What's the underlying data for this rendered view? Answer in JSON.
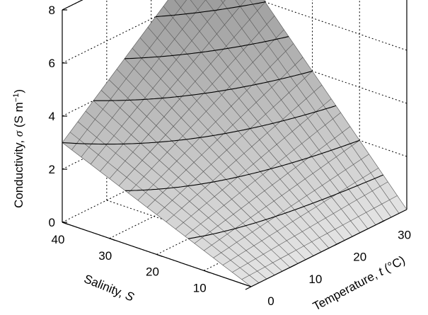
{
  "chart_data": {
    "type": "surface",
    "x_axis": {
      "label": "Salinity, S",
      "ticks": [
        "10",
        "20",
        "30",
        "40"
      ],
      "range": [
        0,
        40
      ]
    },
    "y_axis": {
      "label": "Temperature, t (°C)",
      "ticks": [
        "0",
        "10",
        "20",
        "30"
      ],
      "range": [
        0,
        35
      ]
    },
    "z_axis": {
      "label": "Conductivity, σ (S m⁻¹)",
      "ticks": [
        "0",
        "2",
        "4",
        "6",
        "8"
      ],
      "range": [
        0,
        8
      ]
    },
    "grid": true,
    "surface_corners": [
      {
        "salinity": 0,
        "temperature": 0,
        "conductivity": 0
      },
      {
        "salinity": 40,
        "temperature": 0,
        "conductivity": 3.0
      },
      {
        "salinity": 0,
        "temperature": 35,
        "conductivity": 0
      },
      {
        "salinity": 40,
        "temperature": 35,
        "conductivity": 8.0
      }
    ],
    "mesh_divisions": 20,
    "contour_levels": [
      1,
      2,
      3,
      4,
      5,
      6,
      7
    ],
    "colors": {
      "surface": "#c0c0c0",
      "mesh": "#555555",
      "contours": "#000000",
      "box": "#000000",
      "grid": "#000000"
    }
  }
}
